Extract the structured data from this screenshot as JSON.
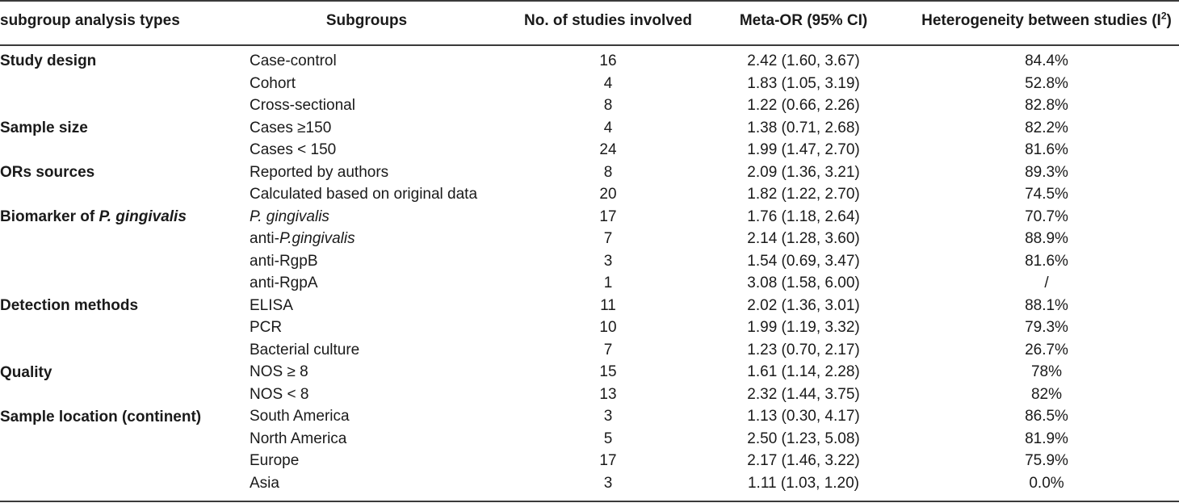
{
  "headers": {
    "col1": "subgroup analysis types",
    "col2": "Subgroups",
    "col3": "No. of studies involved",
    "col4": "Meta-OR (95% CI)",
    "col5_text": "Heterogeneity between studies (I",
    "col5_sup": "2",
    "col5_close": ")"
  },
  "groups": {
    "study_design": "Study design",
    "sample_size": "Sample size",
    "ors_sources": "ORs sources",
    "biomarker_prefix": "Biomarker of ",
    "biomarker_italic": "P. gingivalis",
    "detection": "Detection methods",
    "quality": "Quality",
    "location": "Sample location (continent)"
  },
  "rows": [
    {
      "subgroup": "Case-control",
      "n": "16",
      "or": "2.42 (1.60, 3.67)",
      "i2": "84.4%"
    },
    {
      "subgroup": "Cohort",
      "n": "4",
      "or": "1.83 (1.05, 3.19)",
      "i2": "52.8%"
    },
    {
      "subgroup": "Cross-sectional",
      "n": "8",
      "or": "1.22 (0.66, 2.26)",
      "i2": "82.8%"
    },
    {
      "subgroup": "Cases ≥150",
      "n": "4",
      "or": "1.38 (0.71, 2.68)",
      "i2": "82.2%"
    },
    {
      "subgroup": "Cases < 150",
      "n": "24",
      "or": "1.99 (1.47, 2.70)",
      "i2": "81.6%"
    },
    {
      "subgroup": "Reported by authors",
      "n": "8",
      "or": "2.09 (1.36, 3.21)",
      "i2": "89.3%"
    },
    {
      "subgroup": "Calculated based on original data",
      "n": "20",
      "or": "1.82 (1.22, 2.70)",
      "i2": "74.5%"
    },
    {
      "subgroup": "P. gingivalis",
      "n": "17",
      "or": "1.76 (1.18, 2.64)",
      "i2": "70.7%"
    },
    {
      "subgroup_prefix": "anti-",
      "subgroup_italic": "P.gingivalis",
      "n": "7",
      "or": "2.14 (1.28, 3.60)",
      "i2": "88.9%"
    },
    {
      "subgroup": "anti-RgpB",
      "n": "3",
      "or": "1.54 (0.69, 3.47)",
      "i2": "81.6%"
    },
    {
      "subgroup": "anti-RgpA",
      "n": "1",
      "or": "3.08 (1.58, 6.00)",
      "i2": "/"
    },
    {
      "subgroup": "ELISA",
      "n": "11",
      "or": "2.02 (1.36, 3.01)",
      "i2": "88.1%"
    },
    {
      "subgroup": "PCR",
      "n": "10",
      "or": "1.99 (1.19, 3.32)",
      "i2": "79.3%"
    },
    {
      "subgroup": "Bacterial culture",
      "n": "7",
      "or": "1.23 (0.70, 2.17)",
      "i2": "26.7%"
    },
    {
      "subgroup": "NOS ≥ 8",
      "n": "15",
      "or": "1.61 (1.14, 2.28)",
      "i2": "78%"
    },
    {
      "subgroup": "NOS < 8",
      "n": "13",
      "or": "2.32 (1.44, 3.75)",
      "i2": "82%"
    },
    {
      "subgroup": "South America",
      "n": "3",
      "or": "1.13 (0.30, 4.17)",
      "i2": "86.5%"
    },
    {
      "subgroup": "North America",
      "n": "5",
      "or": "2.50 (1.23, 5.08)",
      "i2": "81.9%"
    },
    {
      "subgroup": "Europe",
      "n": "17",
      "or": "2.17 (1.46, 3.22)",
      "i2": "75.9%"
    },
    {
      "subgroup": "Asia",
      "n": "3",
      "or": "1.11 (1.03, 1.20)",
      "i2": "0.0%"
    }
  ]
}
